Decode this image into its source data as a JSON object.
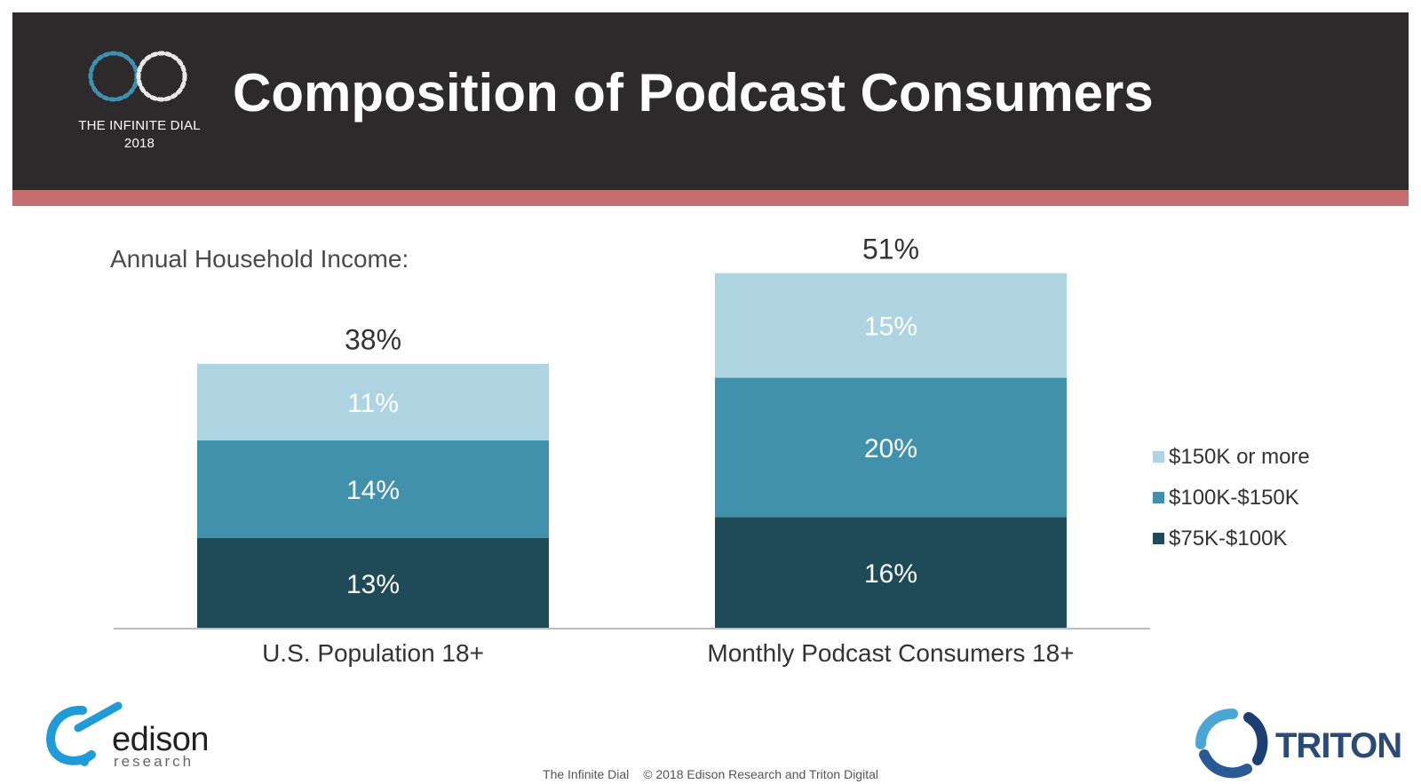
{
  "header": {
    "title": "Composition of Podcast Consumers",
    "logo_line1": "THE INFINITE DIAL",
    "logo_line2": "2018"
  },
  "subtitle": "Annual Household Income:",
  "chart_data": {
    "type": "bar",
    "stacked": true,
    "categories": [
      "U.S. Population 18+",
      "Monthly Podcast Consumers 18+"
    ],
    "series": [
      {
        "name": "$75K-$100K",
        "values": [
          13,
          16
        ],
        "color": "#1f4a58"
      },
      {
        "name": "$100K-$150K",
        "values": [
          14,
          20
        ],
        "color": "#4191ad"
      },
      {
        "name": "$150K or more",
        "values": [
          11,
          15
        ],
        "color": "#aed4e1"
      }
    ],
    "segment_labels": [
      [
        "13%",
        "14%",
        "11%"
      ],
      [
        "16%",
        "20%",
        "15%"
      ]
    ],
    "totals": [
      38,
      51
    ],
    "total_labels": [
      "38%",
      "51%"
    ],
    "legend_position": "right",
    "legend_order": [
      "$150K or more",
      "$100K-$150K",
      "$75K-$100K"
    ],
    "grid": false
  },
  "footer": {
    "left": "The Infinite Dial",
    "right": "© 2018 Edison Research and Triton Digital"
  },
  "logos": {
    "edison_name": "edison",
    "edison_sub": "research",
    "triton_name": "TRITON"
  }
}
